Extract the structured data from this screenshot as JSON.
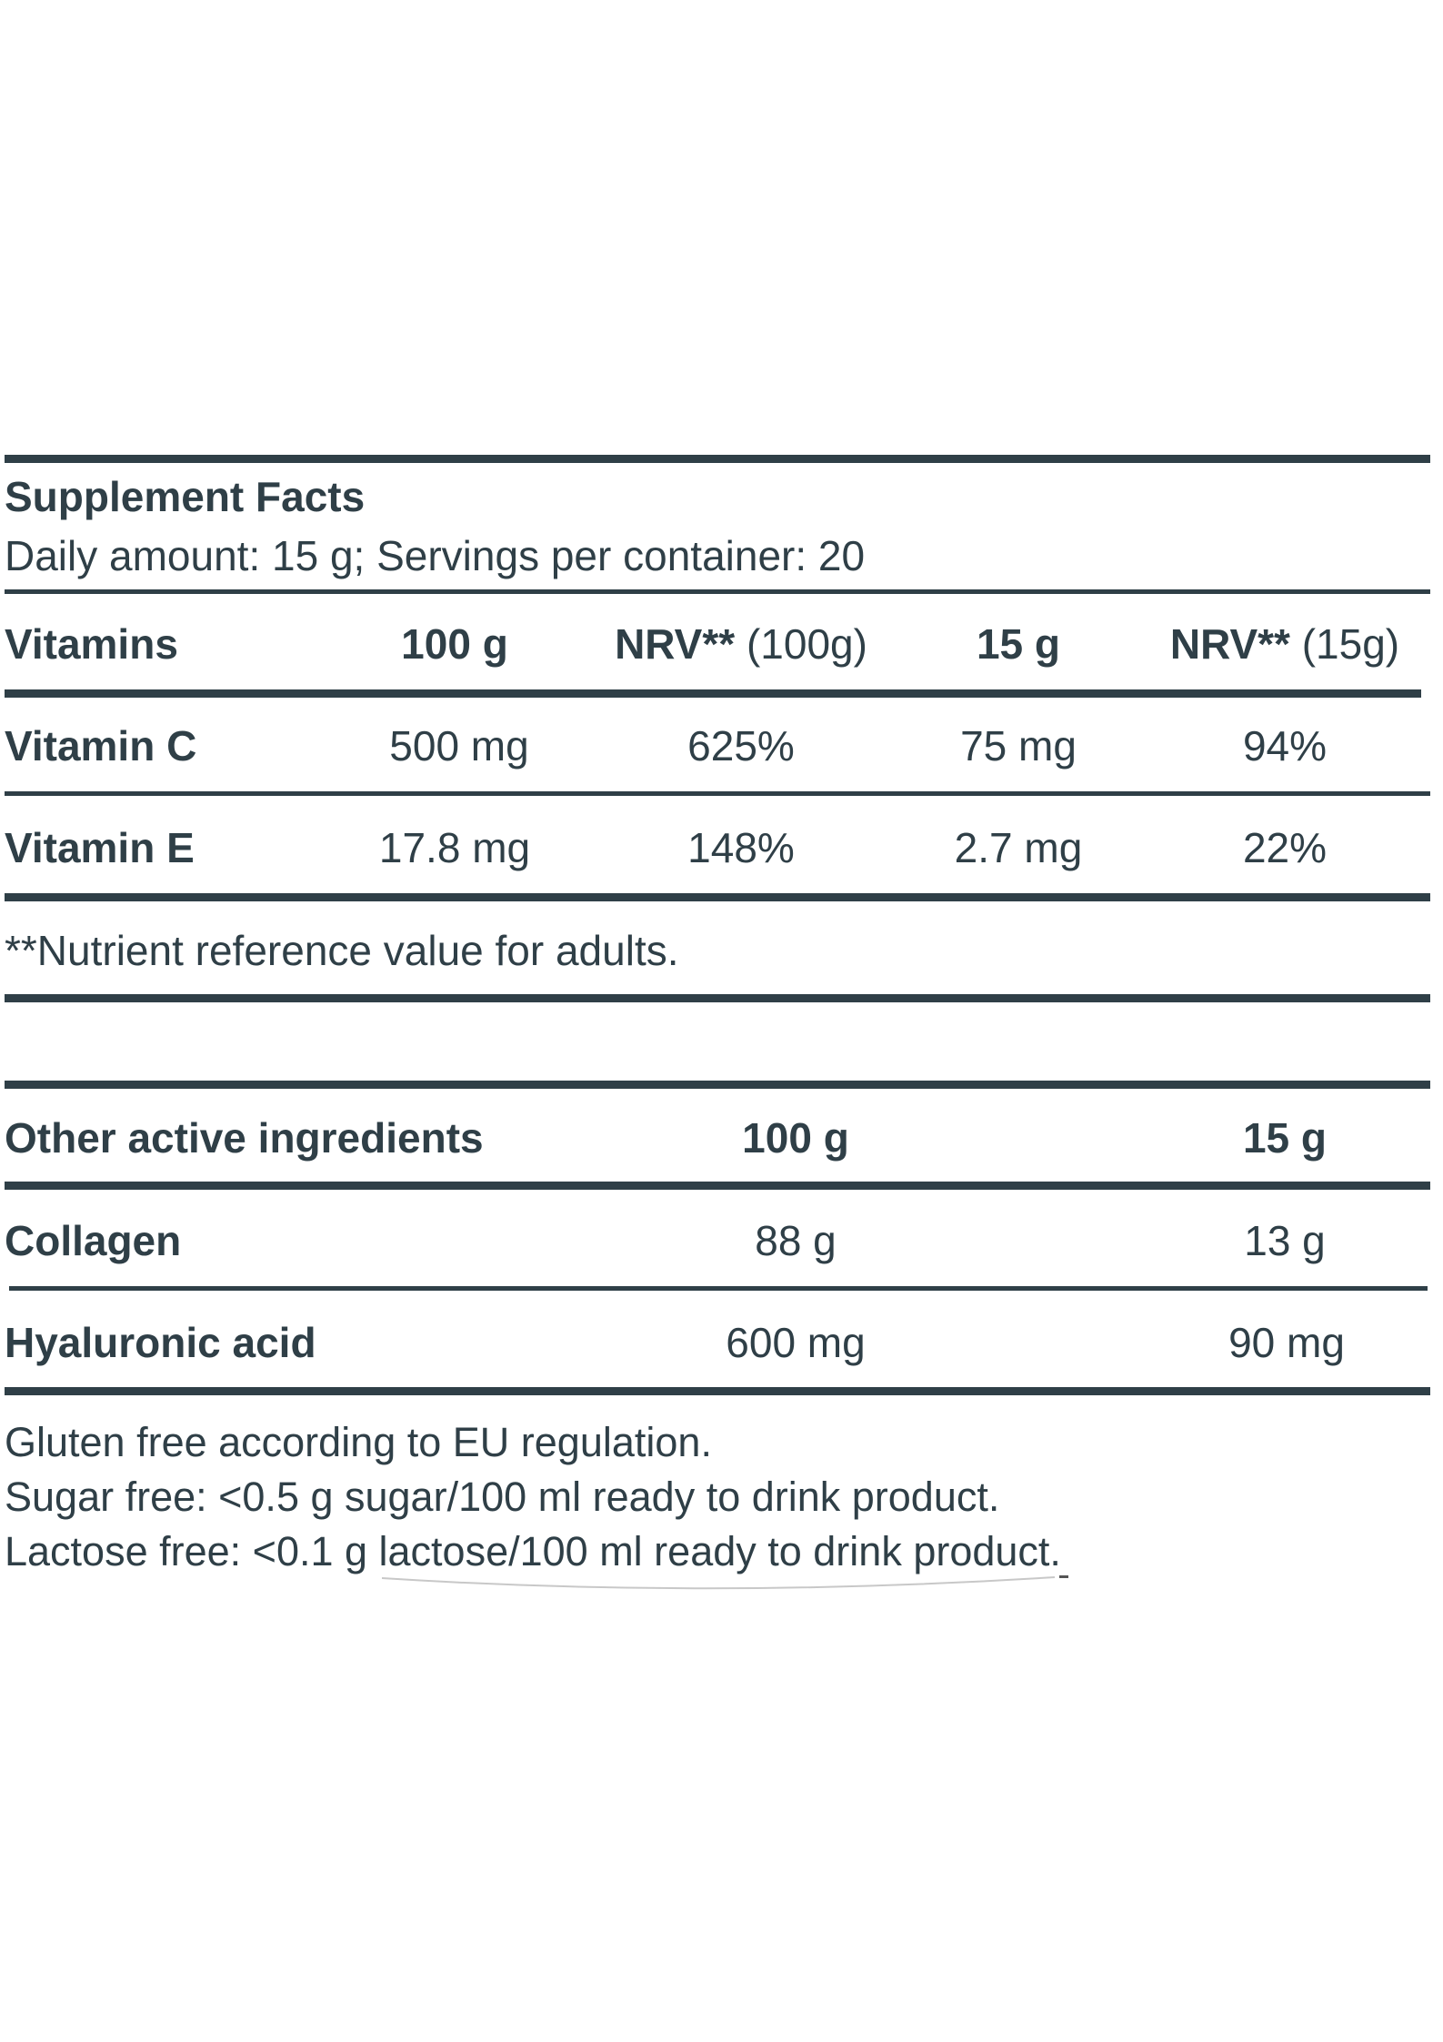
{
  "header": {
    "title": "Supplement Facts",
    "subtitle": "Daily amount: 15 g; Servings per container: 20"
  },
  "vitamins_table": {
    "headers": {
      "name": "Vitamins",
      "per100": "100 g",
      "nrv100_bold": "NRV**",
      "nrv100_light": "(100g)",
      "per15": "15 g",
      "nrv15_bold": "NRV**",
      "nrv15_light": "(15g)"
    },
    "rows": [
      {
        "name": "Vitamin C",
        "per100": "500 mg",
        "nrv100": "625%",
        "per15": "75 mg",
        "nrv15": "94%"
      },
      {
        "name": "Vitamin E",
        "per100": "17.8 mg",
        "nrv100": "148%",
        "per15": "2.7 mg",
        "nrv15": "22%"
      }
    ],
    "footnote": "**Nutrient reference value for adults."
  },
  "other_table": {
    "headers": {
      "name": "Other active ingredients",
      "per100": "100 g",
      "per15": "15 g"
    },
    "rows": [
      {
        "name": "Collagen",
        "per100": "88 g",
        "per15": "13 g"
      },
      {
        "name": "Hyaluronic acid",
        "per100": "600 mg",
        "per15": "90 mg"
      }
    ]
  },
  "footer": {
    "lines": [
      "Gluten free according to EU regulation.",
      "Sugar free: <0.5 g sugar/100 ml ready to drink product.",
      "Lactose free: <0.1 g lactose/100 ml ready to drink product."
    ]
  },
  "colors": {
    "text": "#2f3f47",
    "background": "#ffffff"
  }
}
